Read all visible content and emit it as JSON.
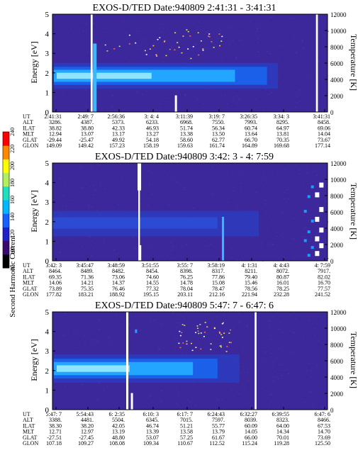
{
  "chart_data": [
    {
      "type": "heatmap",
      "title": "EXOS-D/TED   Date:940809  2:41:31 - 3:41:31",
      "ylabel": "Energy [eV]",
      "ylabel_right": "Temperature [K]",
      "ylim": [
        0,
        5
      ],
      "yticks": [
        0,
        1,
        2,
        3,
        4,
        5
      ],
      "ylim_right": [
        0,
        12000
      ],
      "yticks_right": [
        0,
        2000,
        4000,
        6000,
        8000,
        10000,
        12000
      ],
      "row_labels": [
        "UT",
        "ALT",
        "ILAT",
        "MLT",
        "GLAT",
        "GLON"
      ],
      "columns": [
        [
          "2:41:31",
          "3286.",
          "38.82",
          "12.94",
          "-29.44",
          "149.09"
        ],
        [
          "2:49: 7",
          "4387.",
          "38.80",
          "13.07",
          "-25.47",
          "149.42"
        ],
        [
          "2:56:36",
          "5373.",
          "42.33",
          "13.17",
          "49.92",
          "157.23"
        ],
        [
          "3: 4: 4",
          "6233.",
          "46.93",
          "13.27",
          "54.18",
          "158.19"
        ],
        [
          "3:11:39",
          "6968.",
          "51.74",
          "13.38",
          "58.60",
          "159.63"
        ],
        [
          "3:19: 7",
          "7550.",
          "56.34",
          "13.50",
          "62.77",
          "161.74"
        ],
        [
          "3:26:35",
          "7993.",
          "60.74",
          "13.64",
          "66.70",
          "164.89"
        ],
        [
          "3:34: 3",
          "8295.",
          "64.97",
          "13.81",
          "70.35",
          "169.68"
        ],
        [
          "3:41:31",
          "8458.",
          "69.06",
          "14.04",
          "73.67",
          "177.14"
        ]
      ]
    },
    {
      "type": "heatmap",
      "title": "EXOS-D/TED   Date:940809  3:42: 3 - 4: 7:59",
      "ylabel": "Energy [eV]",
      "ylabel_right": "Temperature [K]",
      "ylim": [
        0,
        5
      ],
      "yticks": [
        0,
        1,
        2,
        3,
        4,
        5
      ],
      "ylim_right": [
        0,
        12000
      ],
      "yticks_right": [
        0,
        2000,
        4000,
        6000,
        8000,
        10000,
        12000
      ],
      "row_labels": [
        "UT",
        "ALT",
        "ILAT",
        "MLT",
        "GLAT",
        "GLON"
      ],
      "columns": [
        [
          "3:42: 3",
          "8464.",
          "69.35",
          "14.06",
          "73.89",
          "177.82"
        ],
        [
          "3:45:47",
          "8489.",
          "71.36",
          "14.21",
          "75.35",
          "183.21"
        ],
        [
          "3:48:59",
          "8482.",
          "73.06",
          "14.37",
          "76.46",
          "188.92"
        ],
        [
          "3:51:55",
          "8454.",
          "74.60",
          "14.55",
          "77.32",
          "195.15"
        ],
        [
          "3:55: 7",
          "8398.",
          "76.25",
          "14.78",
          "78.04",
          "203.11"
        ],
        [
          "3:58:19",
          "8317.",
          "77.86",
          "15.08",
          "78.47",
          "212.16"
        ],
        [
          "4: 1:31",
          "8211.",
          "79.40",
          "15.46",
          "78.56",
          "221.94"
        ],
        [
          "4: 4:43",
          "8072.",
          "80.87",
          "16.01",
          "78.25",
          "232.28"
        ],
        [
          "4: 7:59",
          "7917.",
          "82.02",
          "16.70",
          "77.57",
          "241.52"
        ]
      ]
    },
    {
      "type": "heatmap",
      "title": "EXOS-D/TED   Date:940809  5:47: 7 - 6:47: 6",
      "ylabel": "Energy [eV]",
      "ylabel_right": "Temperature [K]",
      "ylim": [
        0,
        5
      ],
      "yticks": [
        0,
        1,
        2,
        3,
        4,
        5
      ],
      "ylim_right": [
        0,
        12000
      ],
      "yticks_right": [
        0,
        2000,
        4000,
        6000,
        8000,
        10000,
        12000
      ],
      "row_labels": [
        "UT",
        "ALT",
        "ILAT",
        "MLT",
        "GLAT",
        "GLON"
      ],
      "columns": [
        [
          "5:47: 7",
          "3388.",
          "38.30",
          "12.71",
          "-27.51",
          "107.18"
        ],
        [
          "5:54:43",
          "4481.",
          "38.20",
          "12.97",
          "-27.45",
          "109.27"
        ],
        [
          "6: 2:35",
          "5504.",
          "42.05",
          "13.19",
          "48.80",
          "108.08"
        ],
        [
          "6:10: 3",
          "6345.",
          "46.74",
          "13.39",
          "53.07",
          "109.34"
        ],
        [
          "6:17: 7",
          "7015.",
          "51.21",
          "13.58",
          "57.25",
          "110.67"
        ],
        [
          "6:24:43",
          "7597.",
          "55.77",
          "13.79",
          "61.67",
          "112.52"
        ],
        [
          "6:32:27",
          "8039.",
          "60.09",
          "14.05",
          "66.00",
          "115.24"
        ],
        [
          "6:39:55",
          "8323.",
          "64.00",
          "14.34",
          "70.01",
          "119.28"
        ],
        [
          "6:47: 6",
          "8466.",
          "67.53",
          "14.70",
          "73.69",
          "125.50"
        ]
      ]
    }
  ],
  "colorbar": {
    "label": "Second Harmonic Current",
    "ticks": [
      "80",
      "100",
      "120",
      "140",
      "160",
      "180",
      "200",
      "220",
      "240"
    ],
    "colors": [
      "#000000",
      "#3a0a6e",
      "#2020c8",
      "#1860ff",
      "#00b8ff",
      "#20e0c0",
      "#b0f060",
      "#ffff00",
      "#ff8800",
      "#ff0000"
    ]
  },
  "colors": {
    "background": "#3c289a",
    "band_dark": "#2a3cc0",
    "band_mid": "#1b60e8",
    "band_bright": "#22a6ff",
    "band_core": "#8fe4ff",
    "gap": "#ffffff"
  }
}
